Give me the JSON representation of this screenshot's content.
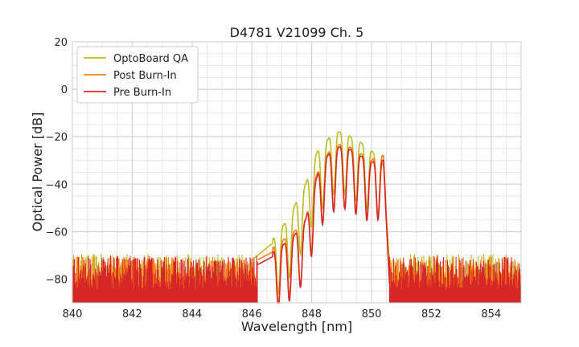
{
  "chart_data": {
    "type": "line",
    "title": "D4781 V21099 Ch. 5",
    "xlabel": "Wavelength [nm]",
    "ylabel": "Optical Power [dB]",
    "xlim": [
      840,
      855
    ],
    "ylim": [
      -90,
      20
    ],
    "xticks": [
      840,
      842,
      844,
      846,
      848,
      850,
      852,
      854
    ],
    "yticks": [
      20,
      0,
      -20,
      -40,
      -60,
      -80
    ],
    "xtick_labels": [
      "840",
      "842",
      "844",
      "846",
      "848",
      "850",
      "852",
      "854"
    ],
    "ytick_labels": [
      "20",
      "0",
      "−20",
      "−40",
      "−60",
      "−80"
    ],
    "grid": true,
    "legend": "top-left",
    "series": [
      {
        "name": "OptoBoard QA",
        "color": "#bcbd22",
        "noise_floor": -79,
        "x": [
          846.0,
          846.2,
          846.4,
          846.6,
          846.8,
          847.0,
          847.2,
          847.4,
          847.6,
          847.8,
          848.0,
          848.2,
          848.4,
          848.6,
          848.8,
          849.0,
          849.2,
          849.4,
          849.6,
          849.8,
          850.0,
          850.2,
          850.4,
          850.6
        ],
        "values": [
          -70,
          -68,
          -66,
          -64,
          -62,
          -58,
          -55,
          -50,
          -44,
          -40,
          -32,
          -26,
          -24,
          -20,
          -18,
          -18,
          -19,
          -21,
          -22,
          -24,
          -26,
          -28,
          -32,
          -72
        ]
      },
      {
        "name": "Post Burn-In",
        "color": "#ff7f0e",
        "noise_floor": -80,
        "x": [
          846.2,
          846.5,
          846.8,
          847.0,
          847.2,
          847.4,
          847.6,
          847.8,
          848.0,
          848.2,
          848.4,
          848.6,
          848.8,
          849.0,
          849.2,
          849.4,
          849.6,
          849.8,
          850.0,
          850.2,
          850.4,
          850.6
        ],
        "values": [
          -70,
          -68,
          -66,
          -64,
          -62,
          -60,
          -58,
          -55,
          -42,
          -35,
          -30,
          -26,
          -24,
          -23,
          -24,
          -25,
          -27,
          -28,
          -30,
          -27,
          -28,
          -78
        ]
      },
      {
        "name": "Pre Burn-In",
        "color": "#d62728",
        "noise_floor": -80,
        "x": [
          846.2,
          846.5,
          846.8,
          847.0,
          847.2,
          847.4,
          847.6,
          847.8,
          848.0,
          848.2,
          848.4,
          848.6,
          848.8,
          849.0,
          849.2,
          849.4,
          849.6,
          849.8,
          850.0,
          850.2,
          850.4,
          850.6
        ],
        "values": [
          -72,
          -70,
          -68,
          -66,
          -64,
          -62,
          -58,
          -55,
          -44,
          -36,
          -30,
          -27,
          -25,
          -24,
          -25,
          -26,
          -28,
          -29,
          -31,
          -29,
          -30,
          -80
        ]
      }
    ]
  }
}
